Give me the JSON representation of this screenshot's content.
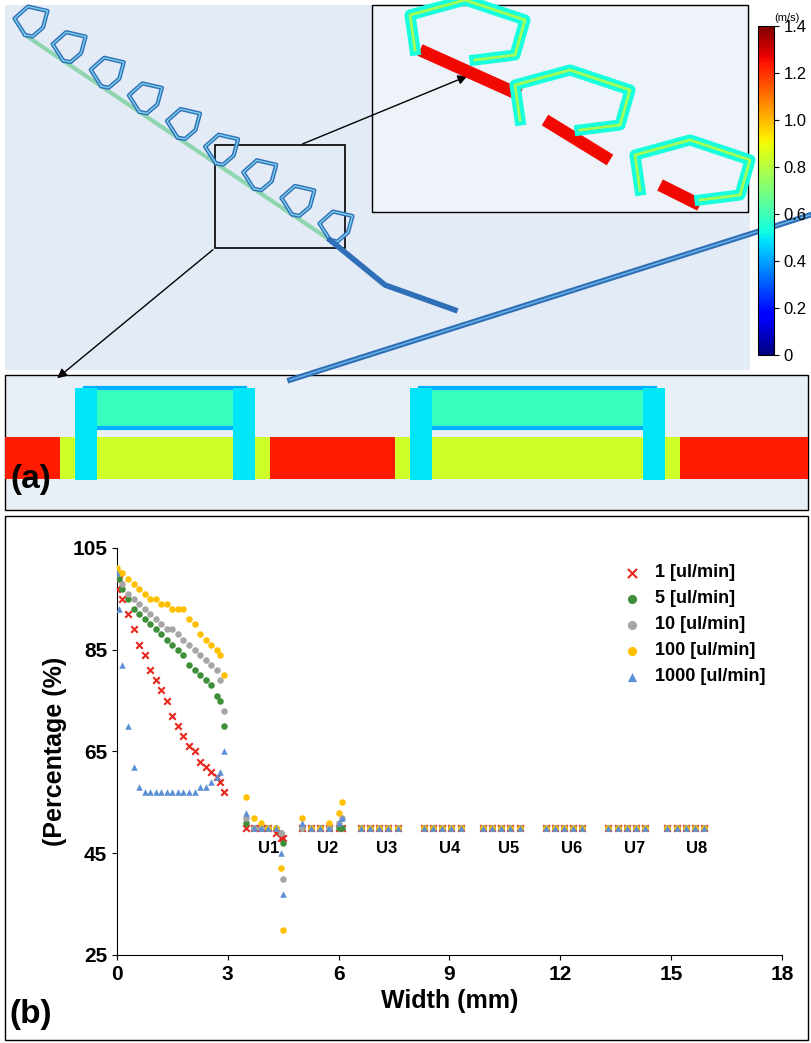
{
  "panel_a": {
    "label": "(a)",
    "colorbar": {
      "label": "(m/s)",
      "range": [
        0,
        1.4
      ],
      "ticks": [
        0,
        0.2,
        0.4,
        0.6,
        0.8,
        1.0,
        1.2,
        1.4
      ]
    }
  },
  "chart_data": {
    "type": "scatter",
    "panel_label": "(b)",
    "x_label": "Width (mm)",
    "y_label": "(Percentage (%)",
    "xlim": [
      0,
      18
    ],
    "xticks": [
      0,
      3,
      6,
      9,
      12,
      15,
      18
    ],
    "ylim": [
      25,
      105
    ],
    "yticks": [
      25,
      45,
      65,
      85,
      105
    ],
    "legend": "upper right",
    "series": [
      {
        "name": "1 [ul/min]",
        "color": "#e8261c",
        "marker": "x",
        "x": [
          0,
          0.05,
          0.15,
          0.3,
          0.45,
          0.6,
          0.75,
          0.9,
          1.05,
          1.2,
          1.35,
          1.5,
          1.65,
          1.8,
          1.95,
          2.1,
          2.25,
          2.4,
          2.55,
          2.7,
          2.8,
          2.9,
          3.5,
          3.7,
          3.9,
          4.1,
          4.3,
          4.45,
          4.5,
          5.0,
          5.25,
          5.5,
          5.75,
          6.0,
          6.1,
          6.6,
          6.85,
          7.1,
          7.35,
          7.6,
          8.3,
          8.55,
          8.8,
          9.05,
          9.3,
          9.9,
          10.15,
          10.4,
          10.65,
          10.9,
          11.6,
          11.85,
          12.1,
          12.35,
          12.6,
          13.3,
          13.55,
          13.8,
          14.05,
          14.3,
          14.9,
          15.15,
          15.4,
          15.65,
          15.9
        ],
        "values": [
          97,
          99,
          95,
          92,
          89,
          86,
          84,
          81,
          79,
          77,
          75,
          72,
          70,
          68,
          66,
          65,
          63,
          62,
          61,
          60,
          59,
          57,
          50,
          50,
          50,
          50,
          49,
          48,
          48,
          50,
          50,
          50,
          50,
          50,
          50,
          50,
          50,
          50,
          50,
          50,
          50,
          50,
          50,
          50,
          50,
          50,
          50,
          50,
          50,
          50,
          50,
          50,
          50,
          50,
          50,
          50,
          50,
          50,
          50,
          50,
          50,
          50,
          50,
          50,
          50
        ]
      },
      {
        "name": "5 [ul/min]",
        "color": "#3e8e3a",
        "marker": "circle",
        "x": [
          0,
          0.05,
          0.15,
          0.3,
          0.45,
          0.6,
          0.75,
          0.9,
          1.05,
          1.2,
          1.35,
          1.5,
          1.65,
          1.8,
          1.95,
          2.1,
          2.25,
          2.4,
          2.55,
          2.7,
          2.8,
          2.9,
          3.5,
          3.7,
          3.9,
          4.1,
          4.3,
          4.45,
          4.5,
          5.0,
          5.25,
          5.5,
          5.75,
          6.0,
          6.1,
          6.6,
          6.85,
          7.1,
          7.35,
          7.6,
          8.3,
          8.55,
          8.8,
          9.05,
          9.3,
          9.9,
          10.15,
          10.4,
          10.65,
          10.9,
          11.6,
          11.85,
          12.1,
          12.35,
          12.6,
          13.3,
          13.55,
          13.8,
          14.05,
          14.3,
          14.9,
          15.15,
          15.4,
          15.65,
          15.9
        ],
        "values": [
          100,
          99,
          97,
          95,
          93,
          92,
          91,
          90,
          89,
          88,
          87,
          86,
          85,
          84,
          82,
          81,
          80,
          79,
          78,
          76,
          75,
          70,
          51,
          50,
          50,
          50,
          50,
          49,
          47,
          50,
          50,
          50,
          50,
          50,
          50,
          50,
          50,
          50,
          50,
          50,
          50,
          50,
          50,
          50,
          50,
          50,
          50,
          50,
          50,
          50,
          50,
          50,
          50,
          50,
          50,
          50,
          50,
          50,
          50,
          50,
          50,
          50,
          50,
          50,
          50
        ]
      },
      {
        "name": "10 [ul/min]",
        "color": "#a6a6a6",
        "marker": "circle",
        "x": [
          0,
          0.05,
          0.15,
          0.3,
          0.45,
          0.6,
          0.75,
          0.9,
          1.05,
          1.2,
          1.35,
          1.5,
          1.65,
          1.8,
          1.95,
          2.1,
          2.25,
          2.4,
          2.55,
          2.7,
          2.8,
          2.9,
          3.5,
          3.7,
          3.9,
          4.1,
          4.3,
          4.45,
          4.5,
          5.0,
          5.25,
          5.5,
          5.75,
          6.0,
          6.1,
          6.6,
          6.85,
          7.1,
          7.35,
          7.6,
          8.3,
          8.55,
          8.8,
          9.05,
          9.3,
          9.9,
          10.15,
          10.4,
          10.65,
          10.9,
          11.6,
          11.85,
          12.1,
          12.35,
          12.6,
          13.3,
          13.55,
          13.8,
          14.05,
          14.3,
          14.9,
          15.15,
          15.4,
          15.65,
          15.9
        ],
        "values": [
          100,
          100,
          98,
          96,
          95,
          94,
          93,
          92,
          91,
          90,
          89,
          89,
          88,
          87,
          86,
          85,
          84,
          83,
          82,
          81,
          79,
          73,
          52,
          50,
          50,
          50,
          50,
          49,
          40,
          50,
          50,
          50,
          50,
          51,
          52,
          50,
          50,
          50,
          50,
          50,
          50,
          50,
          50,
          50,
          50,
          50,
          50,
          50,
          50,
          50,
          50,
          50,
          50,
          50,
          50,
          50,
          50,
          50,
          50,
          50,
          50,
          50,
          50,
          50,
          50
        ]
      },
      {
        "name": "100 [ul/min]",
        "color": "#ffc000",
        "marker": "circle",
        "x": [
          0,
          0.05,
          0.15,
          0.3,
          0.45,
          0.6,
          0.75,
          0.9,
          1.05,
          1.2,
          1.35,
          1.5,
          1.65,
          1.8,
          1.95,
          2.1,
          2.25,
          2.4,
          2.55,
          2.7,
          2.8,
          2.9,
          3.5,
          3.7,
          3.9,
          4.1,
          4.3,
          4.45,
          4.5,
          5.0,
          5.25,
          5.5,
          5.75,
          6.0,
          6.1,
          6.6,
          6.85,
          7.1,
          7.35,
          7.6,
          8.3,
          8.55,
          8.8,
          9.05,
          9.3,
          9.9,
          10.15,
          10.4,
          10.65,
          10.9,
          11.6,
          11.85,
          12.1,
          12.35,
          12.6,
          13.3,
          13.55,
          13.8,
          14.05,
          14.3,
          14.9,
          15.15,
          15.4,
          15.65,
          15.9
        ],
        "values": [
          101,
          100,
          100,
          99,
          98,
          97,
          96,
          95,
          95,
          94,
          94,
          93,
          93,
          93,
          91,
          90,
          88,
          87,
          86,
          85,
          84,
          80,
          56,
          52,
          51,
          50,
          50,
          42,
          30,
          52,
          50,
          50,
          51,
          53,
          55,
          50,
          50,
          50,
          50,
          50,
          50,
          50,
          50,
          50,
          50,
          50,
          50,
          50,
          50,
          50,
          50,
          50,
          50,
          50,
          50,
          50,
          50,
          50,
          50,
          50,
          50,
          50,
          50,
          50,
          50
        ]
      },
      {
        "name": "1000 [ul/min]",
        "color": "#5b8fd6",
        "marker": "triangle",
        "x": [
          0,
          0.05,
          0.15,
          0.3,
          0.45,
          0.6,
          0.75,
          0.9,
          1.05,
          1.2,
          1.35,
          1.5,
          1.65,
          1.8,
          1.95,
          2.1,
          2.25,
          2.4,
          2.55,
          2.7,
          2.8,
          2.9,
          3.5,
          3.7,
          3.9,
          4.1,
          4.3,
          4.45,
          4.5,
          5.0,
          5.25,
          5.5,
          5.75,
          6.0,
          6.1,
          6.6,
          6.85,
          7.1,
          7.35,
          7.6,
          8.3,
          8.55,
          8.8,
          9.05,
          9.3,
          9.9,
          10.15,
          10.4,
          10.65,
          10.9,
          11.6,
          11.85,
          12.1,
          12.35,
          12.6,
          13.3,
          13.55,
          13.8,
          14.05,
          14.3,
          14.9,
          15.15,
          15.4,
          15.65,
          15.9
        ],
        "values": [
          100,
          93,
          82,
          70,
          62,
          58,
          57,
          57,
          57,
          57,
          57,
          57,
          57,
          57,
          57,
          57,
          58,
          58,
          59,
          60,
          61,
          65,
          53,
          50,
          50,
          50,
          50,
          45,
          37,
          51,
          50,
          50,
          50,
          51,
          52,
          50,
          50,
          50,
          50,
          50,
          50,
          50,
          50,
          50,
          50,
          50,
          50,
          50,
          50,
          50,
          50,
          50,
          50,
          50,
          50,
          50,
          50,
          50,
          50,
          50,
          50,
          50,
          50,
          50,
          50
        ]
      }
    ],
    "annotations": [
      {
        "text": "U1",
        "x": 4.1,
        "y": 46
      },
      {
        "text": "U2",
        "x": 5.7,
        "y": 46
      },
      {
        "text": "U3",
        "x": 7.3,
        "y": 46
      },
      {
        "text": "U4",
        "x": 9.0,
        "y": 46
      },
      {
        "text": "U5",
        "x": 10.6,
        "y": 46
      },
      {
        "text": "U6",
        "x": 12.3,
        "y": 46
      },
      {
        "text": "U7",
        "x": 14.0,
        "y": 46
      },
      {
        "text": "U8",
        "x": 15.7,
        "y": 46
      }
    ]
  }
}
